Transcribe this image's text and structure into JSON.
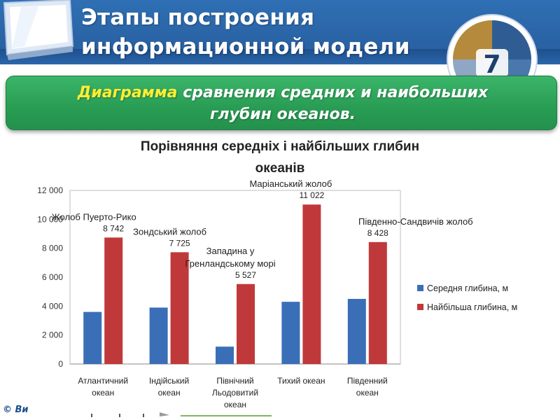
{
  "slide": {
    "title_line1": "Этапы построения",
    "title_line2": "информационной модели",
    "logo_number": "7",
    "banner_accent": "Диаграмма",
    "banner_rest": " сравнения средних и наибольших",
    "banner_line2": "глубин океанов.",
    "footer": "© Ви"
  },
  "colors": {
    "header_blue": "#2f6fb4",
    "banner_green": "#2a9e55",
    "avg_series": "#3a6fb7",
    "max_series": "#c0393a"
  },
  "chart_data": {
    "type": "bar",
    "title_line1": "Порівняння середніх  і  найбільших глибин",
    "title_line2": "океанів",
    "categories": [
      [
        "Атлантичний",
        "океан"
      ],
      [
        "Індійський",
        "океан"
      ],
      [
        "Північний",
        "Льодовитий",
        "океан"
      ],
      [
        "Тихий океан"
      ],
      [
        "Південний",
        "океан"
      ]
    ],
    "series": [
      {
        "name": "Середня глибина, м",
        "values": [
          3600,
          3900,
          1200,
          4300,
          4500
        ]
      },
      {
        "name": "Найбільша глибина, м",
        "values": [
          8742,
          7725,
          5527,
          11022,
          8428
        ]
      }
    ],
    "data_labels": [
      "8 742",
      "7 725",
      "5 527",
      "11 022",
      "8 428"
    ],
    "annotations": [
      [
        "Жолоб Пуерто-Рико"
      ],
      [
        "Зондський жолоб"
      ],
      [
        "Западина у",
        "Гренландському морі"
      ],
      [
        "Маріанський жолоб"
      ],
      [
        "Південно-Сандвичів жолоб"
      ]
    ],
    "y_ticks": [
      "0",
      "2 000",
      "4 000",
      "6 000",
      "8 000",
      "10 000",
      "12 000"
    ],
    "ylim": [
      0,
      12000
    ],
    "grid": false,
    "legend_position": "right"
  }
}
